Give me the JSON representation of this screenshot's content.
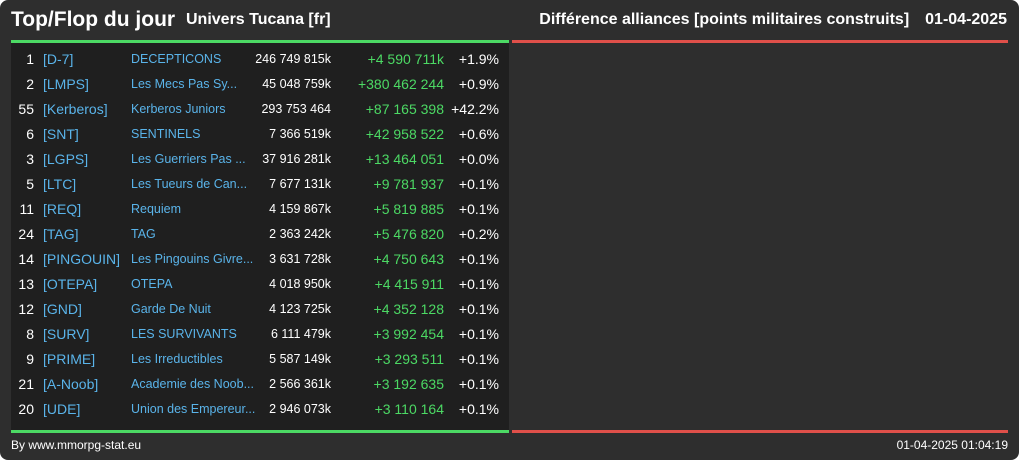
{
  "header": {
    "title": "Top/Flop du jour",
    "universe": "Univers Tucana [fr]",
    "metric": "Différence alliances [points militaires construits]",
    "date": "01-04-2025"
  },
  "colors": {
    "top": "#4cd964",
    "flop": "#e0504a",
    "tag": "#5ab4ea"
  },
  "top_rows": [
    {
      "rank": "1",
      "tag": "[D-7]",
      "name": "DECEPTICONS",
      "points": "246 749 815k",
      "diff": "+4 590 711k",
      "pct": "+1.9%"
    },
    {
      "rank": "2",
      "tag": "[LMPS]",
      "name": "Les Mecs Pas Sy...",
      "points": "45 048 759k",
      "diff": "+380 462 244",
      "pct": "+0.9%"
    },
    {
      "rank": "55",
      "tag": "[Kerberos]",
      "name": "Kerberos Juniors",
      "points": "293 753 464",
      "diff": "+87 165 398",
      "pct": "+42.2%"
    },
    {
      "rank": "6",
      "tag": "[SNT]",
      "name": "SENTINELS",
      "points": "7 366 519k",
      "diff": "+42 958 522",
      "pct": "+0.6%"
    },
    {
      "rank": "3",
      "tag": "[LGPS]",
      "name": "Les Guerriers Pas ...",
      "points": "37 916 281k",
      "diff": "+13 464 051",
      "pct": "+0.0%"
    },
    {
      "rank": "5",
      "tag": "[LTC]",
      "name": "Les Tueurs de Can...",
      "points": "7 677 131k",
      "diff": "+9 781 937",
      "pct": "+0.1%"
    },
    {
      "rank": "11",
      "tag": "[REQ]",
      "name": "Requiem",
      "points": "4 159 867k",
      "diff": "+5 819 885",
      "pct": "+0.1%"
    },
    {
      "rank": "24",
      "tag": "[TAG]",
      "name": "TAG",
      "points": "2 363 242k",
      "diff": "+5 476 820",
      "pct": "+0.2%"
    },
    {
      "rank": "14",
      "tag": "[PINGOUIN]",
      "name": "Les Pingouins Givre...",
      "points": "3 631 728k",
      "diff": "+4 750 643",
      "pct": "+0.1%"
    },
    {
      "rank": "13",
      "tag": "[OTEPA]",
      "name": "OTEPA",
      "points": "4 018 950k",
      "diff": "+4 415 911",
      "pct": "+0.1%"
    },
    {
      "rank": "12",
      "tag": "[GND]",
      "name": "Garde De Nuit",
      "points": "4 123 725k",
      "diff": "+4 352 128",
      "pct": "+0.1%"
    },
    {
      "rank": "8",
      "tag": "[SURV]",
      "name": "LES SURVIVANTS",
      "points": "6 111 479k",
      "diff": "+3 992 454",
      "pct": "+0.1%"
    },
    {
      "rank": "9",
      "tag": "[PRIME]",
      "name": "Les Irreductibles",
      "points": "5 587 149k",
      "diff": "+3 293 511",
      "pct": "+0.1%"
    },
    {
      "rank": "21",
      "tag": "[A-Noob]",
      "name": "Academie des Noob...",
      "points": "2 566 361k",
      "diff": "+3 192 635",
      "pct": "+0.1%"
    },
    {
      "rank": "20",
      "tag": "[UDE]",
      "name": "Union des Empereur...",
      "points": "2 946 073k",
      "diff": "+3 110 164",
      "pct": "+0.1%"
    }
  ],
  "flop_rows": [],
  "footer": {
    "credit": "By www.mmorpg-stat.eu",
    "timestamp": "01-04-2025 01:04:19"
  }
}
